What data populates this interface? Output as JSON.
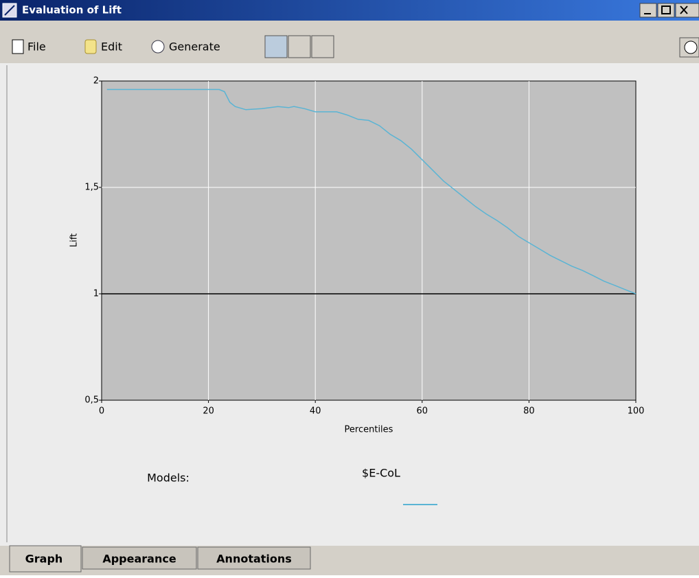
{
  "window": {
    "title": "Evaluation of Lift",
    "menu": [
      "File",
      "Edit",
      "Generate"
    ],
    "tabs": [
      "Graph",
      "Appearance",
      "Annotations"
    ],
    "legend_caption": "Models:"
  },
  "chart_data": {
    "type": "line",
    "x_label": "Percentiles",
    "y_label": "Lift",
    "x": [
      1,
      2,
      4,
      6,
      8,
      10,
      12,
      14,
      16,
      18,
      20,
      22,
      23,
      24,
      25,
      27,
      30,
      33,
      35,
      36,
      38,
      40,
      42,
      44,
      46,
      48,
      50,
      52,
      54,
      56,
      58,
      60,
      62,
      64,
      66,
      68,
      70,
      72,
      74,
      76,
      78,
      80,
      82,
      84,
      86,
      88,
      90,
      92,
      94,
      96,
      98,
      100
    ],
    "series": [
      {
        "name": "$E-CoL",
        "color": "#5ab4d4",
        "values": [
          1.96,
          1.96,
          1.96,
          1.96,
          1.96,
          1.96,
          1.96,
          1.96,
          1.96,
          1.96,
          1.96,
          1.96,
          1.95,
          1.9,
          1.88,
          1.865,
          1.87,
          1.88,
          1.875,
          1.88,
          1.87,
          1.855,
          1.855,
          1.855,
          1.84,
          1.82,
          1.815,
          1.79,
          1.75,
          1.72,
          1.68,
          1.63,
          1.58,
          1.53,
          1.49,
          1.45,
          1.41,
          1.375,
          1.345,
          1.31,
          1.27,
          1.24,
          1.21,
          1.18,
          1.155,
          1.13,
          1.11,
          1.085,
          1.06,
          1.04,
          1.02,
          1.0
        ]
      }
    ],
    "xlim": [
      0,
      100
    ],
    "ylim": [
      0.5,
      2
    ],
    "xticks": [
      0,
      20,
      40,
      60,
      80,
      100
    ],
    "yticks": [
      {
        "value": 0.5,
        "label": "0,5"
      },
      1,
      {
        "value": 1.5,
        "label": "1,5"
      },
      2
    ],
    "reference_line": 1,
    "grid": true
  }
}
